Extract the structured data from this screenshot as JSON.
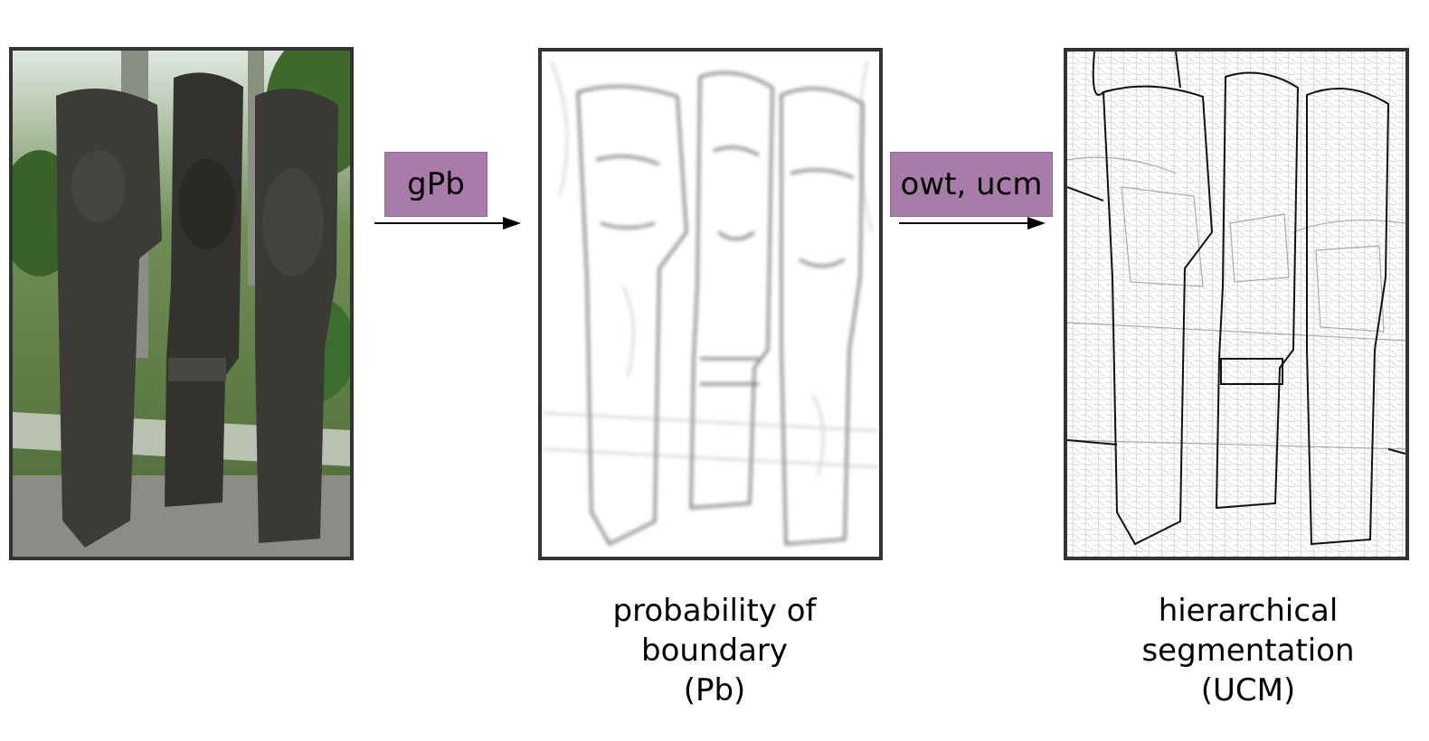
{
  "steps": {
    "first": "gPb",
    "second": "owt, ucm"
  },
  "captions": {
    "pb": [
      "probability of",
      "boundary",
      "(Pb)"
    ],
    "ucm": [
      "hierarchical",
      "segmentation",
      "(UCM)"
    ]
  },
  "colors": {
    "step_box_fill": "#a87ba8",
    "panel_border": "#333333",
    "arrow": "#000000"
  },
  "icons": {
    "arrow": "right-arrow-icon"
  }
}
